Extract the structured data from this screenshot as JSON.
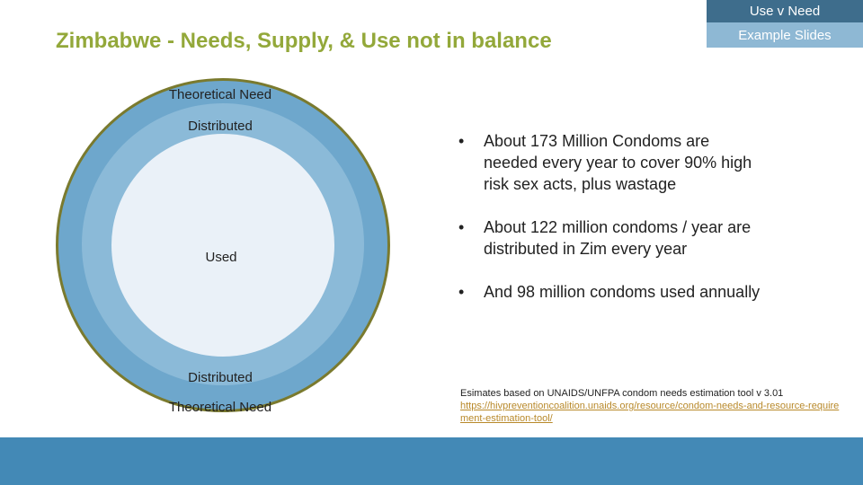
{
  "header": {
    "tag_top": "Use v Need",
    "tag_bottom": "Example Slides",
    "title": "Zimbabwe - Needs, Supply, & Use not in balance"
  },
  "diagram": {
    "outer_top_label": "Theoretical Need",
    "mid_top_label": "Distributed",
    "inner_label": "Used",
    "mid_bottom_label": "Distributed",
    "outer_bottom_label": "Theoretical Need",
    "colors": {
      "outer": "#6ea7cc",
      "middle": "#8bbad8",
      "inner": "#eaf1f8",
      "outline": "#7a7a2e"
    }
  },
  "bullets": [
    {
      "text": "About 173 Million Condoms are needed every year to cover 90% high risk sex acts, plus wastage"
    },
    {
      "text": "About 122 million condoms / year are distributed in Zim every year"
    },
    {
      "text": "And 98 million condoms used annually"
    }
  ],
  "source": {
    "text": "Esimates based on UNAIDS/UNFPA condom needs estimation tool v 3.01",
    "link": "https://hivpreventioncoalition.unaids.org/resource/condom-needs-and-resource-requirement-estimation-tool/"
  },
  "colors": {
    "title": "#93a83a",
    "footer_bar": "#4389b6",
    "tag_top": "#3e6d8c",
    "tag_bottom": "#8eb8d4"
  }
}
